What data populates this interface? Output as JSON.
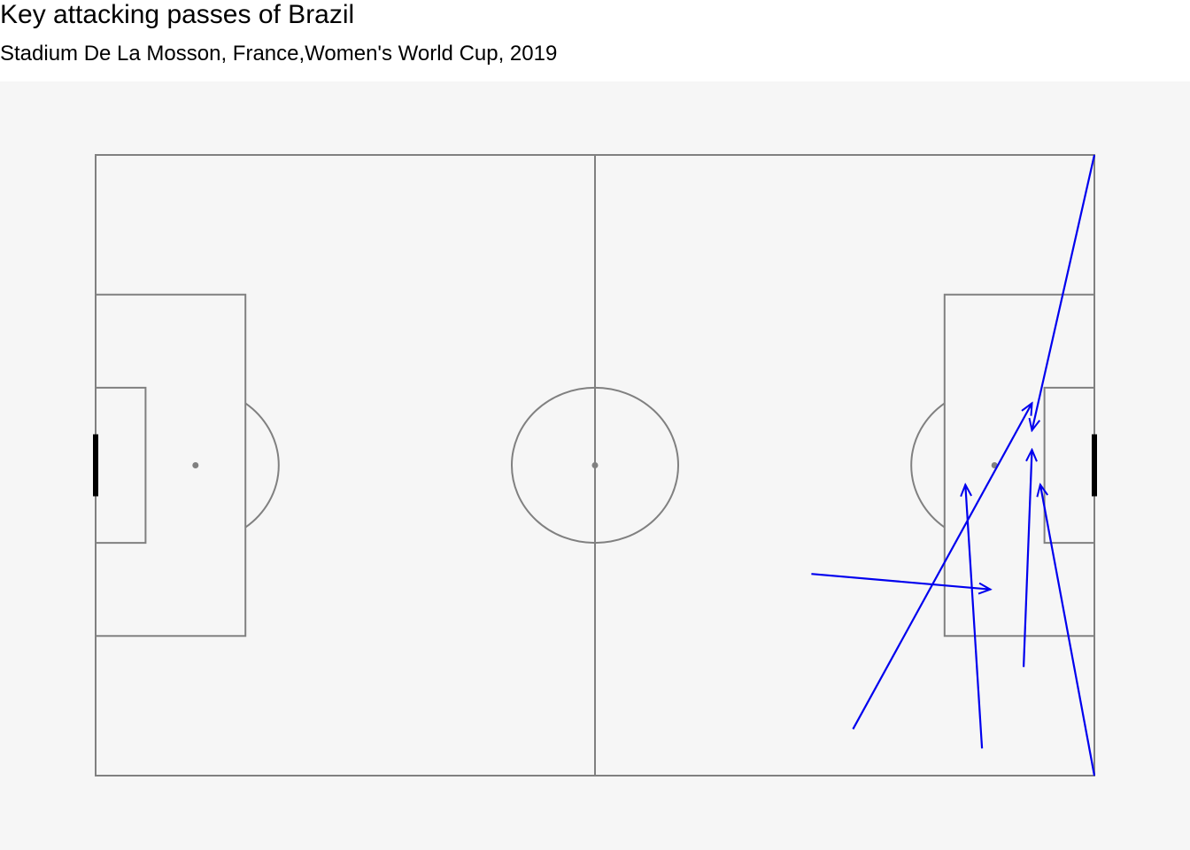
{
  "header": {
    "title": "Key attacking passes of Brazil",
    "subtitle": "Stadium De La Mosson, France,Women's World Cup, 2019"
  },
  "colors": {
    "panel_background": "#f6f6f6",
    "pitch_lines": "#808080",
    "goal": "#000000",
    "pass_arrow": "#0000ee"
  },
  "chart_data": {
    "type": "scatter",
    "pitch": {
      "length": 120,
      "width": 80,
      "x_range": [
        0,
        120
      ],
      "y_range": [
        0,
        80
      ]
    },
    "passes": [
      {
        "x": 86,
        "y": 26,
        "end_x": 107.5,
        "end_y": 24
      },
      {
        "x": 91,
        "y": 6,
        "end_x": 112.5,
        "end_y": 48
      },
      {
        "x": 106.5,
        "y": 3.5,
        "end_x": 104.5,
        "end_y": 37.5
      },
      {
        "x": 111.5,
        "y": 14,
        "end_x": 112.5,
        "end_y": 42
      },
      {
        "x": 120,
        "y": 0,
        "end_x": 113.5,
        "end_y": 37.5
      },
      {
        "x": 120,
        "y": 80,
        "end_x": 112.5,
        "end_y": 44.5
      }
    ]
  }
}
